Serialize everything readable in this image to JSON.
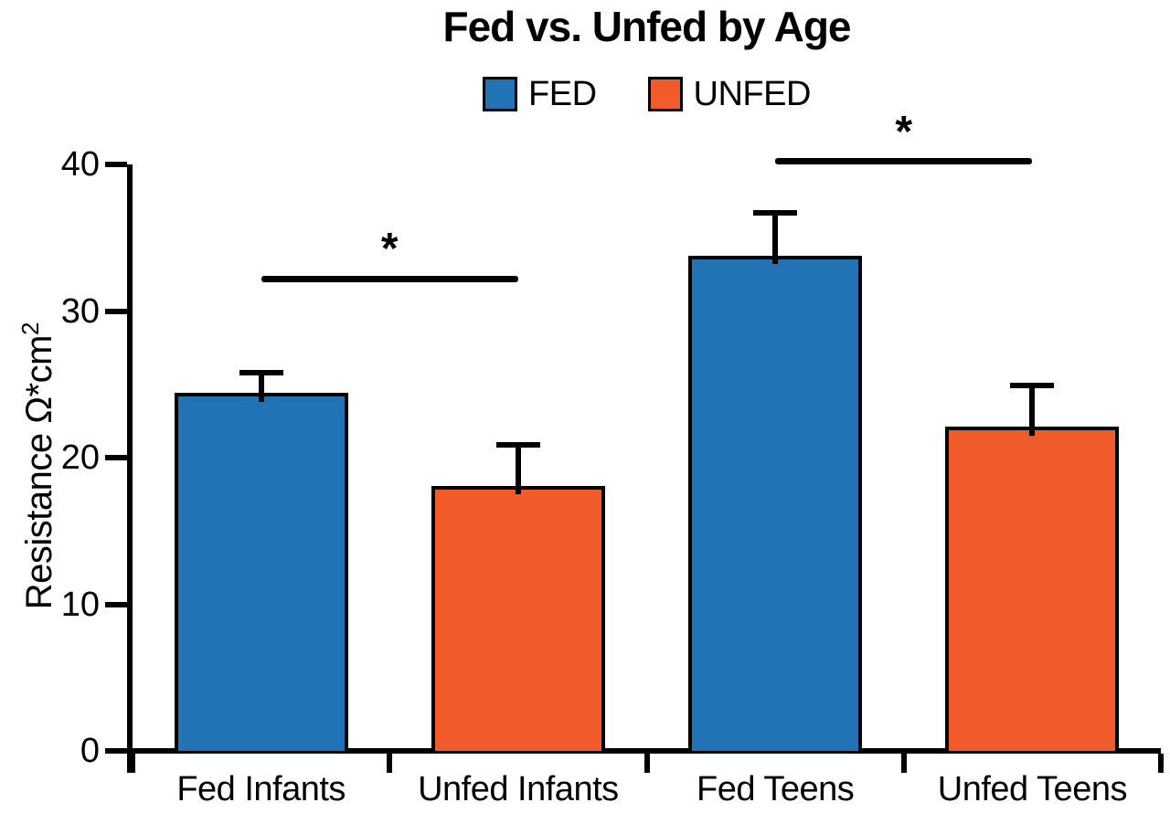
{
  "chart_data": {
    "type": "bar",
    "title": "Fed vs. Unfed by Age",
    "categories": [
      "Fed Infants",
      "Unfed Infants",
      "Fed Teens",
      "Unfed Teens"
    ],
    "values": [
      24.4,
      18.1,
      33.8,
      22.1
    ],
    "errors": [
      1.4,
      2.8,
      2.9,
      2.8
    ],
    "bar_colors": [
      "#2272b6",
      "#f15a2b",
      "#2272b6",
      "#f15a2b"
    ],
    "series_of_bar": [
      "FED",
      "UNFED",
      "FED",
      "UNFED"
    ],
    "legend": [
      {
        "label": "FED",
        "color": "#2272b6"
      },
      {
        "label": "UNFED",
        "color": "#f15a2b"
      }
    ],
    "legend_position": "top-center",
    "ylabel": "Resistance Ω*cm²",
    "ylabel_base": "Resistance Ω*cm",
    "ylabel_sup": "2",
    "xlabel": "",
    "ylim": [
      0,
      40
    ],
    "yticks": [
      0,
      10,
      20,
      30,
      40
    ],
    "grid": false,
    "error_bar_style": "upper-cap-only",
    "significance": [
      {
        "from": "Fed Infants",
        "to": "Unfed Infants",
        "y": 32.2,
        "label": "*"
      },
      {
        "from": "Fed Teens",
        "to": "Unfed Teens",
        "y": 40.2,
        "label": "*"
      }
    ],
    "colors": {
      "axis": "#000000",
      "text": "#000000",
      "background": "#ffffff"
    }
  }
}
